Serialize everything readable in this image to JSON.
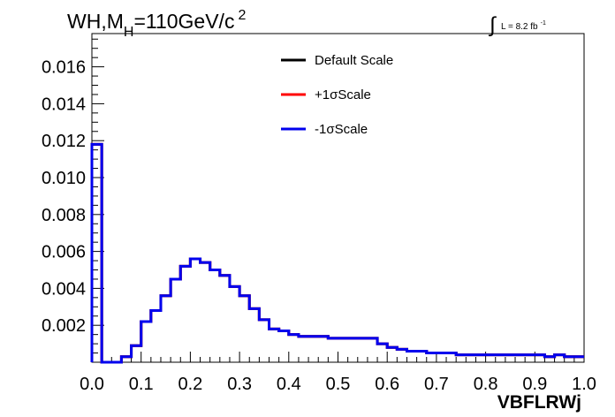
{
  "chart_data": {
    "type": "line",
    "style": "step-histogram",
    "title_main": "WH,M",
    "title_sub": "H",
    "title_rest": "=110GeV/c",
    "title_sup": "2",
    "lumi_main": "L = 8.2 fb",
    "lumi_sup": "-1",
    "xlabel": "VBFLRWj",
    "ylabel": "",
    "xlim": [
      0.0,
      1.0
    ],
    "ylim": [
      0.0,
      0.0178
    ],
    "x_ticks": [
      "0.0",
      "0.1",
      "0.2",
      "0.3",
      "0.4",
      "0.5",
      "0.6",
      "0.7",
      "0.8",
      "0.9",
      "1.0"
    ],
    "y_ticks": [
      "0.002",
      "0.004",
      "0.006",
      "0.008",
      "0.010",
      "0.012",
      "0.014",
      "0.016"
    ],
    "y_tick_values": [
      0.002,
      0.004,
      0.006,
      0.008,
      0.01,
      0.012,
      0.014,
      0.016
    ],
    "grid": false,
    "legend_position": "top-center",
    "bin_edges": [
      0.0,
      0.02,
      0.04,
      0.06,
      0.08,
      0.1,
      0.12,
      0.14,
      0.16,
      0.18,
      0.2,
      0.22,
      0.24,
      0.26,
      0.28,
      0.3,
      0.32,
      0.34,
      0.36,
      0.38,
      0.4,
      0.42,
      0.44,
      0.46,
      0.48,
      0.5,
      0.52,
      0.54,
      0.56,
      0.58,
      0.6,
      0.62,
      0.64,
      0.66,
      0.68,
      0.7,
      0.72,
      0.74,
      0.76,
      0.78,
      0.8,
      0.82,
      0.84,
      0.86,
      0.88,
      0.9,
      0.92,
      0.94,
      0.96,
      0.98,
      1.0
    ],
    "series": [
      {
        "name": "Default Scale",
        "color": "#000000",
        "values": [
          0.0118,
          0.0,
          0.0,
          0.0003,
          0.0009,
          0.0022,
          0.0028,
          0.0036,
          0.0045,
          0.0052,
          0.0056,
          0.0054,
          0.005,
          0.0047,
          0.0041,
          0.0036,
          0.0029,
          0.0023,
          0.0018,
          0.0017,
          0.0015,
          0.0014,
          0.0014,
          0.0014,
          0.0013,
          0.0013,
          0.0013,
          0.0013,
          0.0013,
          0.001,
          0.0008,
          0.0007,
          0.0006,
          0.0006,
          0.0005,
          0.0005,
          0.0005,
          0.0004,
          0.0004,
          0.0004,
          0.0004,
          0.0004,
          0.0004,
          0.0004,
          0.0004,
          0.0004,
          0.0003,
          0.0004,
          0.0003,
          0.0003
        ]
      },
      {
        "name": "+1σScale",
        "color": "#ff0000",
        "values": [
          0.0118,
          0.0,
          0.0,
          0.0003,
          0.0009,
          0.0022,
          0.0028,
          0.0036,
          0.0045,
          0.0052,
          0.0056,
          0.0054,
          0.005,
          0.0047,
          0.0041,
          0.0036,
          0.0029,
          0.0023,
          0.0018,
          0.0017,
          0.0015,
          0.0014,
          0.0014,
          0.0014,
          0.0013,
          0.0013,
          0.0013,
          0.0013,
          0.0013,
          0.001,
          0.0008,
          0.0007,
          0.0006,
          0.0006,
          0.0005,
          0.0005,
          0.0005,
          0.0004,
          0.0004,
          0.0004,
          0.0004,
          0.0004,
          0.0004,
          0.0004,
          0.0004,
          0.0004,
          0.0003,
          0.0004,
          0.0003,
          0.0003
        ]
      },
      {
        "name": "-1σScale",
        "color": "#0000ee",
        "values": [
          0.0118,
          0.0,
          0.0,
          0.0003,
          0.0009,
          0.0022,
          0.0028,
          0.0036,
          0.0045,
          0.0052,
          0.0056,
          0.0054,
          0.005,
          0.0047,
          0.0041,
          0.0036,
          0.0029,
          0.0023,
          0.0018,
          0.0017,
          0.0015,
          0.0014,
          0.0014,
          0.0014,
          0.0013,
          0.0013,
          0.0013,
          0.0013,
          0.0013,
          0.001,
          0.0008,
          0.0007,
          0.0006,
          0.0006,
          0.0005,
          0.0005,
          0.0005,
          0.0004,
          0.0004,
          0.0004,
          0.0004,
          0.0004,
          0.0004,
          0.0004,
          0.0004,
          0.0004,
          0.0003,
          0.0004,
          0.0003,
          0.0003
        ]
      }
    ]
  }
}
